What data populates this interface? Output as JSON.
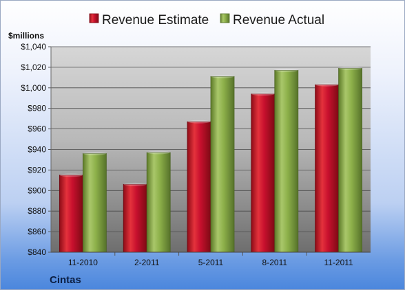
{
  "chart_data": {
    "type": "bar",
    "company": "Cintas",
    "unit_label": "$millions",
    "categories": [
      "11-2010",
      "2-2011",
      "5-2011",
      "8-2011",
      "11-2011"
    ],
    "series": [
      {
        "name": "Revenue Estimate",
        "color": "#c8102e",
        "values": [
          915,
          906,
          967,
          994,
          1003
        ]
      },
      {
        "name": "Revenue Actual",
        "color": "#8db04a",
        "values": [
          936,
          937,
          1011,
          1017,
          1019
        ]
      }
    ],
    "ylim": [
      840,
      1040
    ],
    "yticks": [
      840,
      860,
      880,
      900,
      920,
      940,
      960,
      980,
      1000,
      1020,
      1040
    ],
    "ytick_labels": [
      "$840",
      "$860",
      "$880",
      "$900",
      "$920",
      "$940",
      "$960",
      "$980",
      "$1,000",
      "$1,020",
      "$1,040"
    ],
    "grid": true,
    "legend_position": "top"
  }
}
